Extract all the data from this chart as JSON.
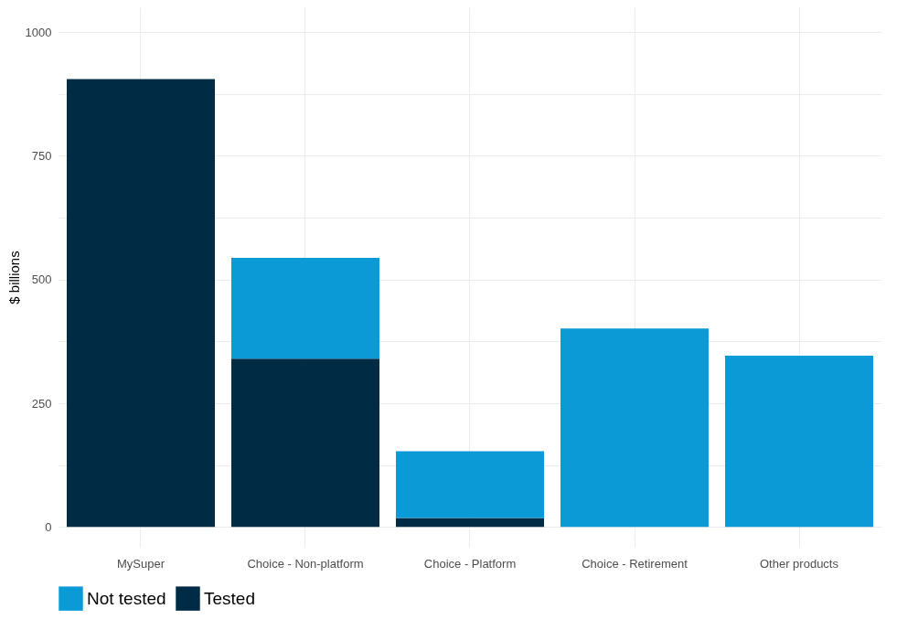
{
  "chart_data": {
    "type": "bar",
    "stacked": true,
    "ylabel": "$ billions",
    "categories": [
      "MySuper",
      "Choice - Non-platform",
      "Choice - Platform",
      "Choice - Retirement",
      "Other products"
    ],
    "series": [
      {
        "name": "Tested",
        "color": "#002b45",
        "values": [
          905,
          340,
          18,
          0,
          0
        ]
      },
      {
        "name": "Not tested",
        "color": "#0a9bd6",
        "values": [
          0,
          204,
          135,
          401,
          346
        ]
      }
    ],
    "ylim": [
      -40,
      1050
    ],
    "yticks": [
      0,
      {
        "value": 125,
        "label": null
      },
      250,
      {
        "value": 375,
        "label": null
      },
      500,
      {
        "value": 625,
        "label": null
      },
      750,
      {
        "value": 875,
        "label": null
      },
      1000
    ],
    "grid": true,
    "legend": "bottom"
  }
}
